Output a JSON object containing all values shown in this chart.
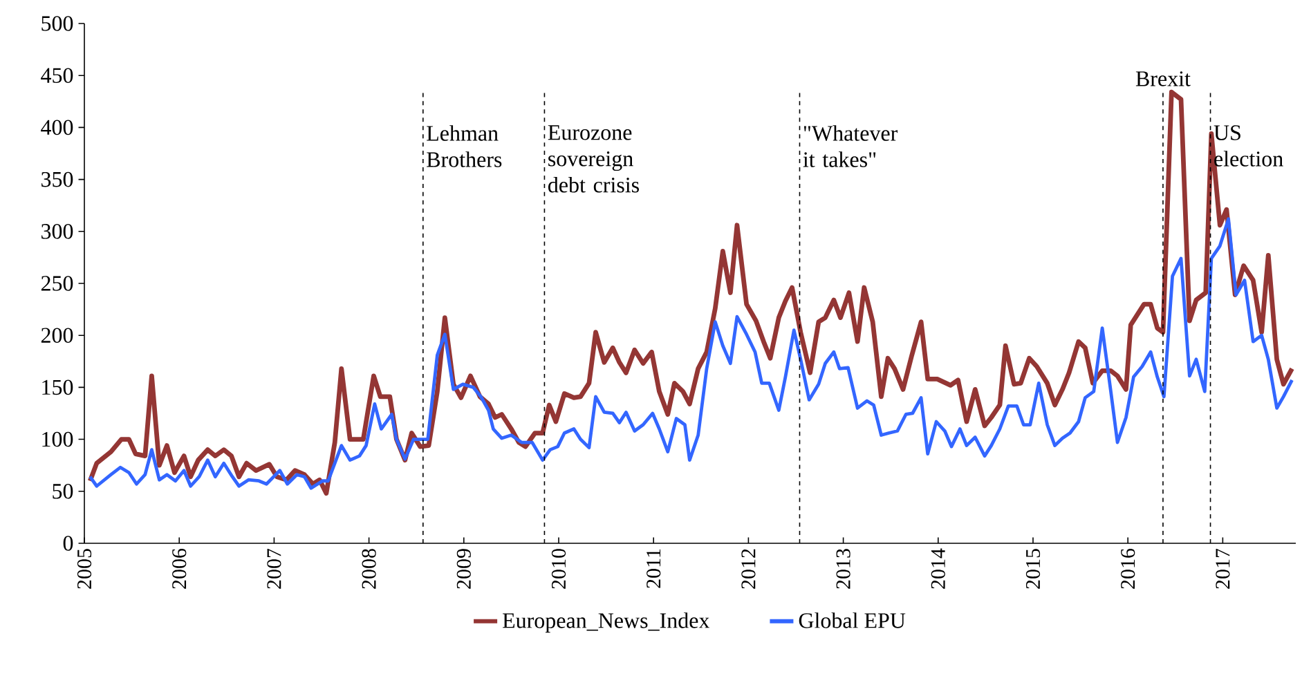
{
  "chart_data": {
    "type": "line",
    "xlim": [
      2005,
      2017.77
    ],
    "ylim": [
      0,
      500
    ],
    "xticks": [
      2005,
      2006,
      2007,
      2008,
      2009,
      2010,
      2011,
      2012,
      2013,
      2014,
      2015,
      2016,
      2017
    ],
    "yticks": [
      0,
      50,
      100,
      150,
      200,
      250,
      300,
      350,
      400,
      450,
      500
    ],
    "legend": "bottom",
    "line_style": "solid",
    "series": [
      {
        "name": "European_News_Index",
        "color": "#943634",
        "x": [
          2005.06,
          2005.13,
          2005.28,
          2005.39,
          2005.47,
          2005.54,
          2005.64,
          2005.71,
          2005.79,
          2005.87,
          2005.95,
          2006.05,
          2006.12,
          2006.2,
          2006.3,
          2006.38,
          2006.47,
          2006.55,
          2006.63,
          2006.71,
          2006.81,
          2006.95,
          2007.03,
          2007.13,
          2007.22,
          2007.32,
          2007.41,
          2007.48,
          2007.55,
          2007.64,
          2007.71,
          2007.8,
          2007.94,
          2008.05,
          2008.12,
          2008.22,
          2008.29,
          2008.38,
          2008.45,
          2008.54,
          2008.63,
          2008.72,
          2008.8,
          2008.89,
          2008.97,
          2009.07,
          2009.17,
          2009.26,
          2009.33,
          2009.4,
          2009.5,
          2009.58,
          2009.65,
          2009.75,
          2009.83,
          2009.9,
          2009.97,
          2010.06,
          2010.16,
          2010.23,
          2010.32,
          2010.39,
          2010.48,
          2010.57,
          2010.64,
          2010.71,
          2010.8,
          2010.89,
          2010.98,
          2011.06,
          2011.15,
          2011.22,
          2011.31,
          2011.38,
          2011.47,
          2011.56,
          2011.65,
          2011.73,
          2011.81,
          2011.88,
          2011.98,
          2012.08,
          2012.16,
          2012.23,
          2012.32,
          2012.39,
          2012.46,
          2012.55,
          2012.65,
          2012.74,
          2012.81,
          2012.9,
          2012.97,
          2013.06,
          2013.15,
          2013.22,
          2013.31,
          2013.4,
          2013.47,
          2013.54,
          2013.63,
          2013.72,
          2013.82,
          2013.89,
          2013.99,
          2014.13,
          2014.21,
          2014.3,
          2014.39,
          2014.49,
          2014.56,
          2014.65,
          2014.71,
          2014.8,
          2014.87,
          2014.96,
          2015.04,
          2015.15,
          2015.23,
          2015.31,
          2015.38,
          2015.48,
          2015.55,
          2015.63,
          2015.73,
          2015.82,
          2015.89,
          2015.98,
          2016.03,
          2016.17,
          2016.24,
          2016.31,
          2016.37,
          2016.46,
          2016.56,
          2016.65,
          2016.72,
          2016.82,
          2016.88,
          2016.97,
          2017.04,
          2017.13,
          2017.22,
          2017.32,
          2017.41,
          2017.48,
          2017.57,
          2017.64,
          2017.73
        ],
        "values": [
          60,
          77,
          88,
          100,
          100,
          86,
          84,
          161,
          75,
          94,
          68,
          84,
          64,
          80,
          90,
          84,
          90,
          84,
          64,
          77,
          70,
          76,
          64,
          61,
          70,
          66,
          57,
          61,
          48,
          97,
          168,
          100,
          100,
          161,
          141,
          141,
          100,
          80,
          106,
          93,
          94,
          146,
          217,
          153,
          140,
          161,
          141,
          134,
          121,
          124,
          110,
          97,
          93,
          106,
          106,
          133,
          117,
          144,
          140,
          141,
          154,
          203,
          174,
          188,
          174,
          164,
          186,
          173,
          184,
          146,
          124,
          154,
          146,
          134,
          168,
          184,
          226,
          281,
          241,
          306,
          230,
          214,
          194,
          178,
          217,
          233,
          246,
          203,
          164,
          213,
          217,
          234,
          217,
          241,
          194,
          246,
          213,
          141,
          178,
          168,
          148,
          180,
          213,
          158,
          158,
          152,
          157,
          117,
          148,
          113,
          121,
          133,
          190,
          153,
          154,
          178,
          170,
          154,
          133,
          148,
          164,
          194,
          188,
          154,
          166,
          166,
          161,
          148,
          210,
          230,
          230,
          207,
          203,
          434,
          427,
          214,
          234,
          241,
          394,
          306,
          321,
          239,
          267,
          253,
          203,
          277,
          177,
          153,
          168
        ]
      },
      {
        "name": "Global EPU",
        "color": "#3366ff",
        "x": [
          2005.06,
          2005.13,
          2005.28,
          2005.38,
          2005.47,
          2005.55,
          2005.64,
          2005.71,
          2005.79,
          2005.87,
          2005.96,
          2006.05,
          2006.12,
          2006.21,
          2006.3,
          2006.38,
          2006.47,
          2006.56,
          2006.63,
          2006.73,
          2006.84,
          2006.92,
          2007.06,
          2007.14,
          2007.24,
          2007.32,
          2007.39,
          2007.51,
          2007.57,
          2007.71,
          2007.8,
          2007.9,
          2007.97,
          2008.06,
          2008.13,
          2008.24,
          2008.29,
          2008.38,
          2008.47,
          2008.62,
          2008.72,
          2008.8,
          2008.89,
          2008.99,
          2009.1,
          2009.18,
          2009.26,
          2009.31,
          2009.4,
          2009.5,
          2009.61,
          2009.72,
          2009.83,
          2009.91,
          2009.99,
          2010.06,
          2010.16,
          2010.23,
          2010.32,
          2010.39,
          2010.48,
          2010.57,
          2010.64,
          2010.71,
          2010.8,
          2010.89,
          2010.99,
          2011.06,
          2011.15,
          2011.24,
          2011.33,
          2011.38,
          2011.47,
          2011.56,
          2011.65,
          2011.73,
          2011.81,
          2011.88,
          2011.98,
          2012.07,
          2012.14,
          2012.22,
          2012.32,
          2012.39,
          2012.48,
          2012.55,
          2012.64,
          2012.74,
          2012.81,
          2012.9,
          2012.96,
          2013.05,
          2013.15,
          2013.25,
          2013.32,
          2013.4,
          2013.48,
          2013.57,
          2013.66,
          2013.73,
          2013.82,
          2013.89,
          2013.98,
          2014.07,
          2014.14,
          2014.23,
          2014.3,
          2014.39,
          2014.49,
          2014.56,
          2014.65,
          2014.74,
          2014.83,
          2014.9,
          2014.97,
          2015.06,
          2015.15,
          2015.23,
          2015.31,
          2015.39,
          2015.48,
          2015.55,
          2015.64,
          2015.73,
          2015.82,
          2015.89,
          2015.98,
          2016.06,
          2016.15,
          2016.24,
          2016.31,
          2016.38,
          2016.47,
          2016.56,
          2016.65,
          2016.72,
          2016.81,
          2016.88,
          2016.97,
          2017.06,
          2017.14,
          2017.23,
          2017.32,
          2017.41,
          2017.48,
          2017.57,
          2017.64,
          2017.73
        ],
        "values": [
          64,
          55,
          66,
          73,
          68,
          57,
          66,
          90,
          61,
          66,
          60,
          70,
          55,
          64,
          80,
          64,
          77,
          64,
          55,
          61,
          60,
          57,
          70,
          57,
          66,
          64,
          53,
          60,
          60,
          94,
          80,
          84,
          94,
          134,
          110,
          124,
          100,
          81,
          100,
          100,
          181,
          201,
          148,
          153,
          150,
          141,
          128,
          110,
          101,
          104,
          97,
          97,
          80,
          90,
          93,
          106,
          110,
          100,
          92,
          141,
          126,
          125,
          116,
          126,
          108,
          114,
          125,
          110,
          88,
          120,
          114,
          80,
          104,
          168,
          213,
          190,
          173,
          218,
          201,
          184,
          154,
          154,
          128,
          160,
          205,
          177,
          138,
          153,
          173,
          184,
          168,
          169,
          130,
          137,
          133,
          104,
          106,
          108,
          124,
          125,
          140,
          86,
          117,
          108,
          93,
          110,
          94,
          102,
          84,
          94,
          110,
          132,
          132,
          114,
          114,
          154,
          114,
          94,
          101,
          106,
          117,
          140,
          146,
          207,
          146,
          97,
          121,
          160,
          170,
          184,
          160,
          141,
          257,
          274,
          161,
          177,
          146,
          274,
          286,
          312,
          239,
          253,
          194,
          200,
          177,
          130,
          141,
          157
        ]
      }
    ],
    "ref_lines": [
      {
        "axis": "x",
        "value": 2008.57,
        "label": "Lehman Brothers",
        "color": "#000000",
        "line_style": "dashed"
      },
      {
        "axis": "x",
        "value": 2009.85,
        "label": "Eurozone sovereign debt crisis",
        "color": "#000000",
        "line_style": "dashed"
      },
      {
        "axis": "x",
        "value": 2012.54,
        "label": "\"Whatever it takes\"",
        "color": "#000000",
        "line_style": "dashed"
      },
      {
        "axis": "x",
        "value": 2016.37,
        "label": "Brexit",
        "color": "#000000",
        "line_style": "dashed"
      },
      {
        "axis": "x",
        "value": 2016.87,
        "label": "US election",
        "color": "#000000",
        "line_style": "dashed"
      }
    ]
  }
}
